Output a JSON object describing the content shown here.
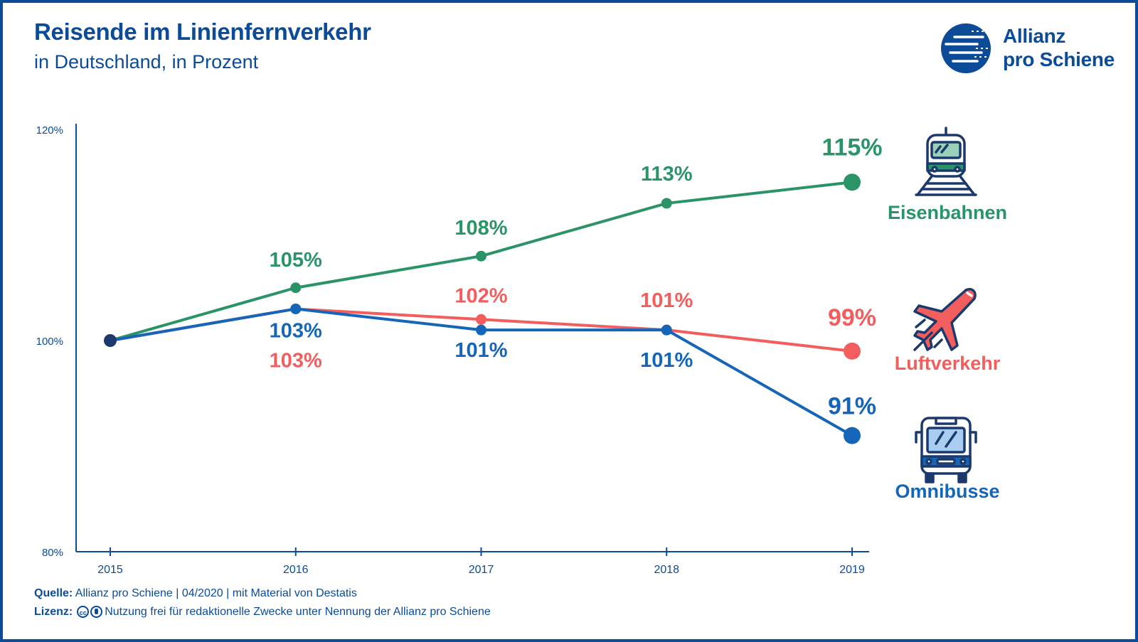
{
  "title": "Reisende im Linienfernverkehr",
  "subtitle": "in Deutschland, in Prozent",
  "logo": {
    "line1": "Allianz",
    "line2": "pro Schiene"
  },
  "footer": {
    "source_label": "Quelle:",
    "source_text": "Allianz pro Schiene | 04/2020 | mit Material von Destatis",
    "license_label": "Lizenz:",
    "license_text": "Nutzung frei für redaktionelle Zwecke unter Nennung der Allianz pro Schiene"
  },
  "colors": {
    "brand": "#0b4b97",
    "rail": "#2a9468",
    "air": "#f25e5e",
    "bus": "#1565b8",
    "start": "#1b3a6b"
  },
  "icons": {
    "rail": "train-icon",
    "air": "airplane-icon",
    "bus": "bus-icon"
  },
  "chart_data": {
    "type": "line",
    "x": [
      "2015",
      "2016",
      "2017",
      "2018",
      "2019"
    ],
    "ylim": [
      80,
      120
    ],
    "yticks": [
      "80%",
      "100%",
      "120%"
    ],
    "series": [
      {
        "name": "Eisenbahnen",
        "values": [
          100,
          105,
          108,
          113,
          115
        ],
        "labels": [
          "",
          "105%",
          "108%",
          "113%",
          "115%"
        ]
      },
      {
        "name": "Luftverkehr",
        "values": [
          100,
          103,
          102,
          101,
          99
        ],
        "labels": [
          "",
          "103%",
          "102%",
          "101%",
          "99%"
        ]
      },
      {
        "name": "Omnibusse",
        "values": [
          100,
          103,
          101,
          101,
          91
        ],
        "labels": [
          "",
          "103%",
          "101%",
          "101%",
          "91%"
        ]
      }
    ]
  }
}
